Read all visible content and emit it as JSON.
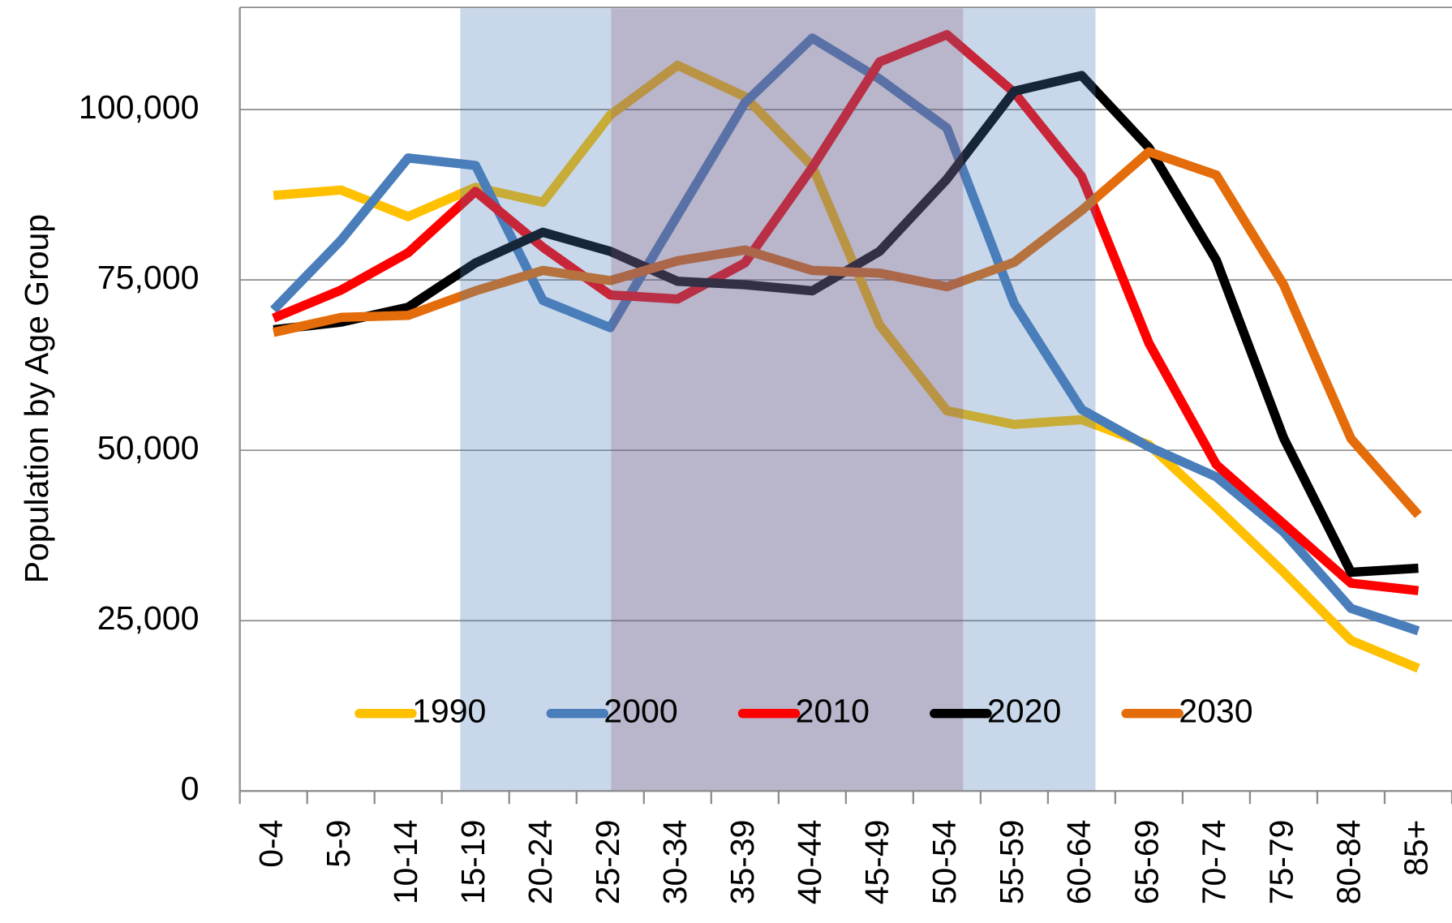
{
  "chart_data": {
    "type": "line",
    "y_label": "Population by Age Group",
    "categories": [
      "0-4",
      "5-9",
      "10-14",
      "15-19",
      "20-24",
      "25-29",
      "30-34",
      "35-39",
      "40-44",
      "45-49",
      "50-54",
      "55-59",
      "60-64",
      "65-69",
      "70-74",
      "75-79",
      "80-84",
      "85+"
    ],
    "series": [
      {
        "name": "1990",
        "color": "#FFC000",
        "values": [
          87400,
          88200,
          84300,
          88600,
          86400,
          99200,
          106500,
          101900,
          91700,
          68400,
          55800,
          53800,
          54500,
          50800,
          41600,
          32100,
          22100,
          18000
        ]
      },
      {
        "name": "2000",
        "color": "#4A7EBB",
        "values": [
          70600,
          80800,
          92900,
          91800,
          72000,
          68000,
          84500,
          101000,
          110500,
          104500,
          97300,
          71500,
          56000,
          50500,
          46100,
          38000,
          26800,
          23500
        ]
      },
      {
        "name": "2010",
        "color": "#FF0000",
        "values": [
          69400,
          73500,
          79000,
          88000,
          79800,
          72800,
          72200,
          77500,
          91500,
          107000,
          111000,
          102500,
          90200,
          65700,
          47900,
          39200,
          30500,
          29400
        ]
      },
      {
        "name": "2020",
        "color": "#000000",
        "values": [
          67700,
          68800,
          71000,
          77500,
          82000,
          79200,
          74800,
          74300,
          73400,
          79200,
          89800,
          102700,
          105000,
          94400,
          77900,
          51800,
          32100,
          32700
        ]
      },
      {
        "name": "2030",
        "color": "#E46C0A",
        "values": [
          67300,
          69500,
          69800,
          73400,
          76400,
          74900,
          77800,
          79400,
          76400,
          76000,
          74000,
          77600,
          85200,
          93800,
          90400,
          74300,
          51700,
          40500
        ]
      }
    ],
    "ylim": [
      0,
      115000
    ],
    "yticks": [
      0,
      {
        "value": 25000,
        "label": "25,000"
      },
      {
        "value": 50000,
        "label": "50,000"
      },
      {
        "value": 75000,
        "label": "75,000"
      },
      {
        "value": 100000,
        "label": "100,000"
      }
    ],
    "grid": true,
    "legend": "inside-bottom"
  }
}
